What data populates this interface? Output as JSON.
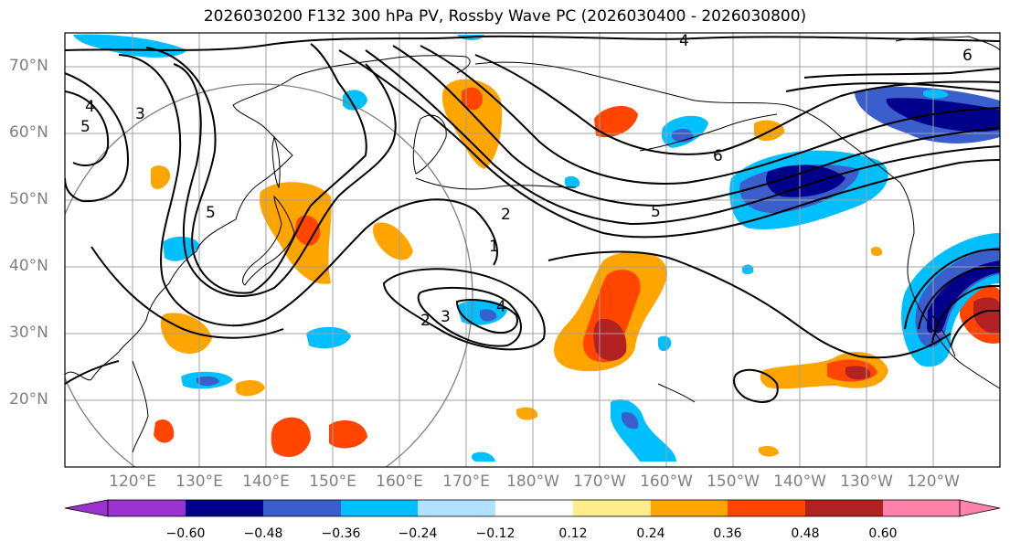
{
  "title": "2026030200 F132 300 hPa PV, Rossby Wave PC (2026030400 - 2026030800)",
  "latitude_labels": [
    "70°N",
    "60°N",
    "50°N",
    "40°N",
    "30°N",
    "20°N"
  ],
  "longitude_labels": [
    "120°E",
    "130°E",
    "140°E",
    "150°E",
    "160°E",
    "170°E",
    "180°W",
    "170°W",
    "160°W",
    "150°W",
    "140°W",
    "130°W",
    "120°W"
  ],
  "colorbar": {
    "tick_labels": [
      "−0.60",
      "−0.48",
      "−0.36",
      "−0.24",
      "−0.12",
      "0.12",
      "0.24",
      "0.36",
      "0.48",
      "0.60"
    ],
    "colors": [
      "#9a32cd",
      "#00008b",
      "#3a5fcd",
      "#00bfff",
      "#b0e2ff",
      "#ffffff",
      "#ffec8b",
      "#ffa500",
      "#ff4500",
      "#b22222",
      "#ff82ab"
    ]
  },
  "contour_labels": [
    "1",
    "2",
    "2",
    "3",
    "3",
    "4",
    "4",
    "4",
    "5",
    "5",
    "5",
    "6",
    "6"
  ],
  "colors": {
    "land_outline": "#000000",
    "grid": "#a0a0a0",
    "circle": "#808080"
  }
}
